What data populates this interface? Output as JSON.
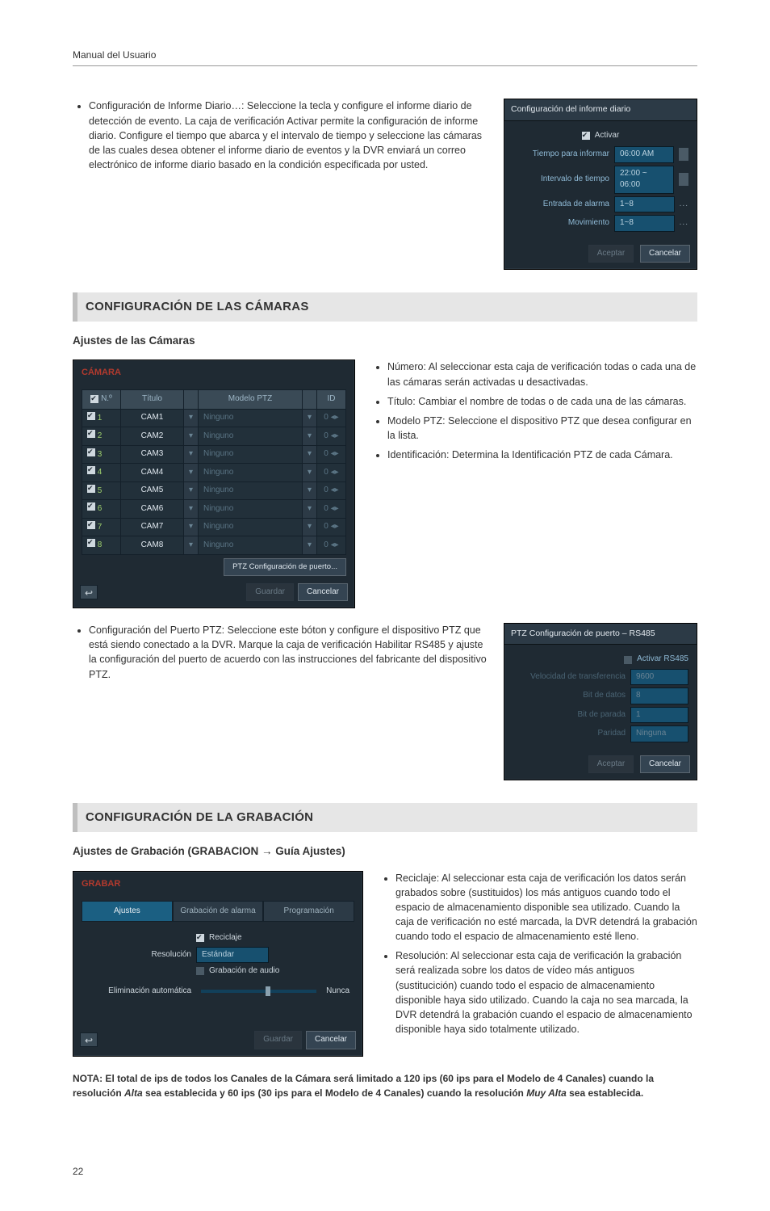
{
  "header": "Manual del Usuario",
  "pageNumber": "22",
  "intro_bullet": "Configuración de Informe Diario…: Seleccione la tecla y configure el informe diario de detección de evento. La caja de verificación Activar permite la configuración de informe diario. Configure el tiempo que abarca y el intervalo de tiempo y seleccione las cámaras de las cuales desea obtener el informe diario de eventos y la DVR enviará un correo electrónico de informe diario basado en la condición especificada por usted.",
  "dlg_diary": {
    "title": "Configuración del informe diario",
    "activate": "Activar",
    "rows": [
      {
        "label": "Tiempo para informar",
        "value": "06:00 AM",
        "stepper": true
      },
      {
        "label": "Intervalo de tiempo",
        "value": "22:00 ~ 06:00",
        "stepper": true
      },
      {
        "label": "Entrada de alarma",
        "value": "1~8",
        "dots": true
      },
      {
        "label": "Movimiento",
        "value": "1~8",
        "dots": true
      }
    ],
    "accept": "Aceptar",
    "cancel": "Cancelar"
  },
  "section_cam": "CONFIGURACIÓN DE LAS CÁMARAS",
  "sub_cam": "Ajustes de las Cámaras",
  "camtbl": {
    "title": "CÁMARA",
    "cols": [
      "N.º",
      "Título",
      "Modelo PTZ",
      "ID"
    ],
    "rows": [
      [
        "1",
        "CAM1",
        "Ninguno",
        "0"
      ],
      [
        "2",
        "CAM2",
        "Ninguno",
        "0"
      ],
      [
        "3",
        "CAM3",
        "Ninguno",
        "0"
      ],
      [
        "4",
        "CAM4",
        "Ninguno",
        "0"
      ],
      [
        "5",
        "CAM5",
        "Ninguno",
        "0"
      ],
      [
        "6",
        "CAM6",
        "Ninguno",
        "0"
      ],
      [
        "7",
        "CAM7",
        "Ninguno",
        "0"
      ],
      [
        "8",
        "CAM8",
        "Ninguno",
        "0"
      ]
    ],
    "ptzport": "PTZ Configuración de puerto...",
    "save": "Guardar",
    "cancel": "Cancelar"
  },
  "cam_bullets": [
    "Número: Al seleccionar esta caja de verificación todas o cada una de las cámaras serán activadas u desactivadas.",
    "Título: Cambiar el nombre de todas o de cada una de las cámaras.",
    "Modelo PTZ: Seleccione el dispositivo PTZ que desea configurar en la lista.",
    "Identificación: Determina la Identificación PTZ de cada Cámara."
  ],
  "ptzport_bullet": "Configuración del Puerto PTZ: Seleccione este bóton y configure el dispositivo PTZ que está siendo conectado a la DVR. Marque la caja de verificación Habilitar RS485 y ajuste la configuración del puerto de acuerdo con las instrucciones del fabricante del dispositivo PTZ.",
  "dlg_ptz": {
    "title": "PTZ Configuración de puerto – RS485",
    "activate": "Activar RS485",
    "rows": [
      {
        "label": "Velocidad de transferencia",
        "value": "9600"
      },
      {
        "label": "Bit de datos",
        "value": "8"
      },
      {
        "label": "Bit de parada",
        "value": "1"
      },
      {
        "label": "Paridad",
        "value": "Ninguna"
      }
    ],
    "accept": "Aceptar",
    "cancel": "Cancelar"
  },
  "section_rec": "CONFIGURACIÓN DE LA GRABACIÓN",
  "sub_rec": "Ajustes de Grabación (GRABACION → Guía Ajustes)",
  "dlg_rec": {
    "title": "GRABAR",
    "tabs": [
      "Ajustes",
      "Grabación de alarma",
      "Programación"
    ],
    "recycle": "Reciclaje",
    "res_label": "Resolución",
    "res_value": "Estándar",
    "audio": "Grabación de audio",
    "auto_label": "Eliminación automática",
    "auto_value": "Nunca",
    "save": "Guardar",
    "cancel": "Cancelar"
  },
  "rec_bullets": [
    "Reciclaje: Al seleccionar esta caja de verificación los datos serán grabados sobre (sustituidos) los más antiguos cuando todo el espacio de almacenamiento disponible sea utilizado. Cuando la caja de verificación no esté marcada, la DVR detendrá la grabación cuando todo el espacio de almacenamiento esté lleno.",
    "Resolución: Al seleccionar esta caja de verificación la grabación será realizada sobre los datos de vídeo más antiguos (sustitucición) cuando todo el espacio de almacenamiento disponible haya sido utilizado. Cuando la caja no sea marcada, la DVR detendrá la grabación cuando el espacio de almacenamiento disponible haya sido totalmente utilizado."
  ],
  "note": {
    "p1": "NOTA: El total de ips de todos los Canales de la Cámara será limitado a 120 ips (60 ips para el Modelo de 4 Canales) cuando la resolución ",
    "i1": "Alta",
    "p2": " sea establecida y 60 ips (30 ips para el Modelo de 4 Canales) cuando la resolución ",
    "i2": "Muy Alta",
    "p3": " sea establecida."
  }
}
